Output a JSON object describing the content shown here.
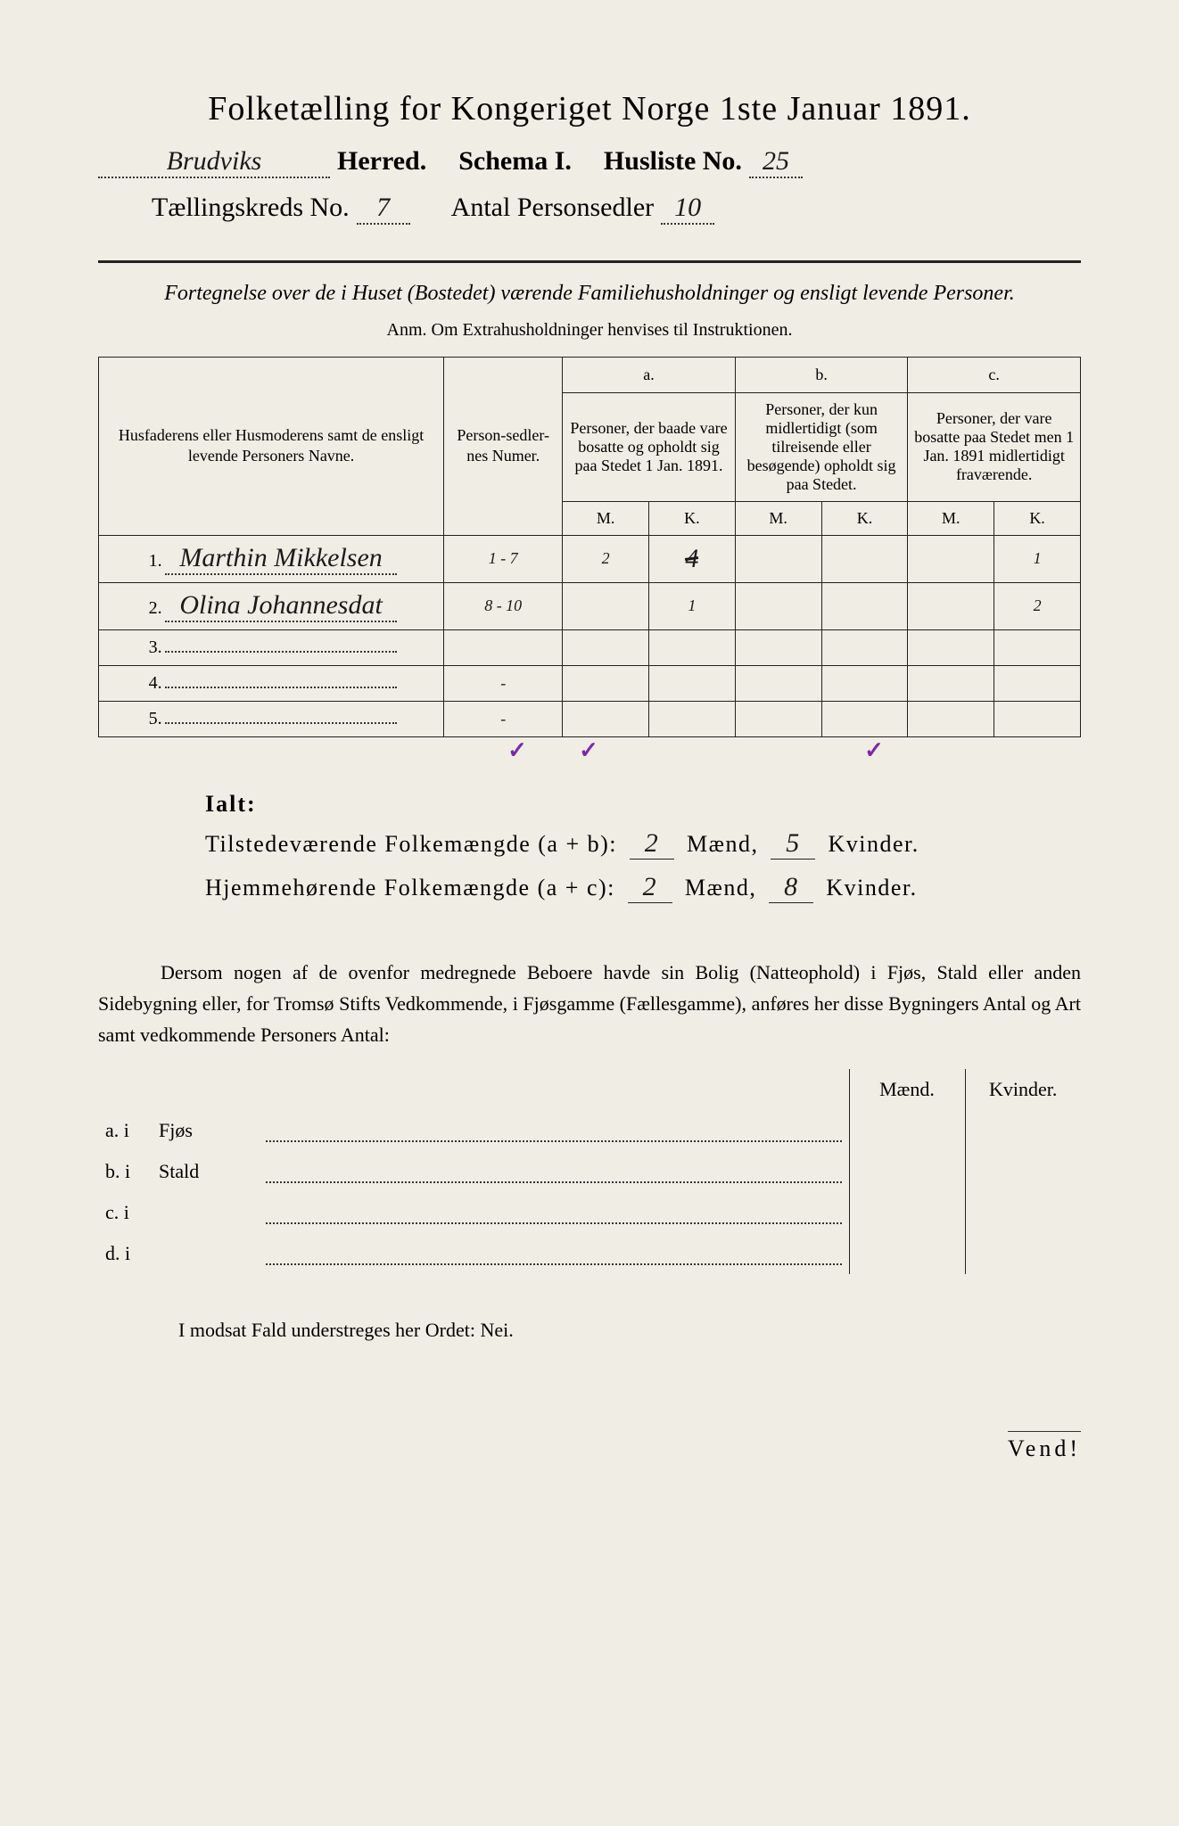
{
  "title": "Folketælling for Kongeriget Norge 1ste Januar 1891.",
  "header": {
    "herred_value": "Brudviks",
    "herred_label": "Herred.",
    "schema_label": "Schema I.",
    "husliste_label": "Husliste No.",
    "husliste_value": "25",
    "kreds_label": "Tællingskreds No.",
    "kreds_value": "7",
    "antal_label": "Antal Personsedler",
    "antal_value": "10"
  },
  "subtitle": "Fortegnelse over de i Huset (Bostedet) værende Familiehusholdninger og ensligt levende Personer.",
  "anm": "Anm.  Om Extrahusholdninger henvises til Instruktionen.",
  "table": {
    "col_names_header": "Husfaderens eller Husmoderens samt de ensligt levende Personers Navne.",
    "col_personsedler": "Person-sedler-nes Numer.",
    "col_a_label": "a.",
    "col_a_desc": "Personer, der baade vare bosatte og opholdt sig paa Stedet 1 Jan. 1891.",
    "col_b_label": "b.",
    "col_b_desc": "Personer, der kun midlertidigt (som tilreisende eller besøgende) opholdt sig paa Stedet.",
    "col_c_label": "c.",
    "col_c_desc": "Personer, der vare bosatte paa Stedet men 1 Jan. 1891 midlertidigt fraværende.",
    "mk_m": "M.",
    "mk_k": "K.",
    "rows": [
      {
        "n": "1.",
        "name": "Marthin Mikkelsen",
        "numer": "1 - 7",
        "aM": "2",
        "aK": "4",
        "aK_struck": true,
        "bM": "",
        "bK": "",
        "cM": "",
        "cK": "1"
      },
      {
        "n": "2.",
        "name": "Olina Johannesdat",
        "numer": "8 - 10",
        "aM": "",
        "aK": "1",
        "bM": "",
        "bK": "",
        "cM": "",
        "cK": "2"
      },
      {
        "n": "3.",
        "name": "",
        "numer": "",
        "aM": "",
        "aK": "",
        "bM": "",
        "bK": "",
        "cM": "",
        "cK": ""
      },
      {
        "n": "4.",
        "name": "",
        "numer": "-",
        "aM": "",
        "aK": "",
        "bM": "",
        "bK": "",
        "cM": "",
        "cK": ""
      },
      {
        "n": "5.",
        "name": "",
        "numer": "-",
        "aM": "",
        "aK": "",
        "bM": "",
        "bK": "",
        "cM": "",
        "cK": ""
      }
    ],
    "ticks": {
      "aM": "✓",
      "aK": "✓",
      "cK": "✓"
    }
  },
  "ialt": {
    "title": "Ialt:",
    "line1_label": "Tilstedeværende Folkemængde (a + b):",
    "line1_m": "2",
    "line1_k": "5",
    "line2_label": "Hjemmehørende Folkemængde (a + c):",
    "line2_m": "2",
    "line2_k": "8",
    "maend": "Mænd,",
    "kvinder": "Kvinder."
  },
  "para": "Dersom nogen af de ovenfor medregnede Beboere havde sin Bolig (Natteophold) i Fjøs, Stald eller anden Sidebygning eller, for Tromsø Stifts Vedkommende, i Fjøsgamme (Fællesgamme), anføres her disse Bygningers Antal og Art samt vedkommende Personers Antal:",
  "buildings": {
    "head_m": "Mænd.",
    "head_k": "Kvinder.",
    "rows": [
      {
        "prefix": "a.  i",
        "label": "Fjøs"
      },
      {
        "prefix": "b.  i",
        "label": "Stald"
      },
      {
        "prefix": "c.  i",
        "label": ""
      },
      {
        "prefix": "d.  i",
        "label": ""
      }
    ]
  },
  "modsat": "I modsat Fald understreges her Ordet: Nei.",
  "vend": "Vend!",
  "colors": {
    "paper": "#f0ede4",
    "ink": "#222222",
    "tick": "#7a2aa8"
  }
}
